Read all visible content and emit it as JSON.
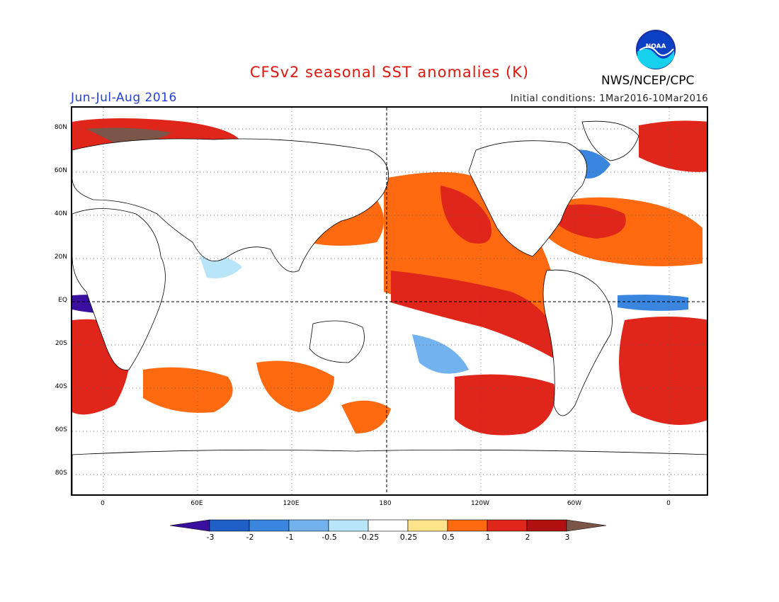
{
  "header": {
    "title": "CFSv2 seasonal SST anomalies (K)",
    "season": "Jun-Jul-Aug 2016",
    "initial_conditions": "Initial conditions: 1Mar2016-10Mar2016",
    "organization": "NWS/NCEP/CPC",
    "logo_text": "NOAA"
  },
  "map": {
    "projection": "equirectangular",
    "lon_labels": [
      "0",
      "60E",
      "120E",
      "180",
      "120W",
      "60W",
      "0"
    ],
    "lat_labels": [
      "80N",
      "60N",
      "40N",
      "20N",
      "EQ",
      "20S",
      "40S",
      "60S",
      "80S"
    ],
    "grid": "dotted 20-degree graticule, dashed equator and dateline"
  },
  "colorbar": {
    "labels": [
      "-3",
      "-2",
      "-1",
      "-0.5",
      "-0.25",
      "0.25",
      "0.5",
      "1",
      "2",
      "3"
    ],
    "colors": [
      "#3a0fa0",
      "#1f5fc8",
      "#3a85de",
      "#72b2ef",
      "#b8e6f8",
      "#ffffff",
      "#fde48a",
      "#ff6a10",
      "#e0261a",
      "#b01010",
      "#7a5548"
    ]
  },
  "colors": {
    "title": "#e0160f",
    "season": "#2540d8"
  }
}
